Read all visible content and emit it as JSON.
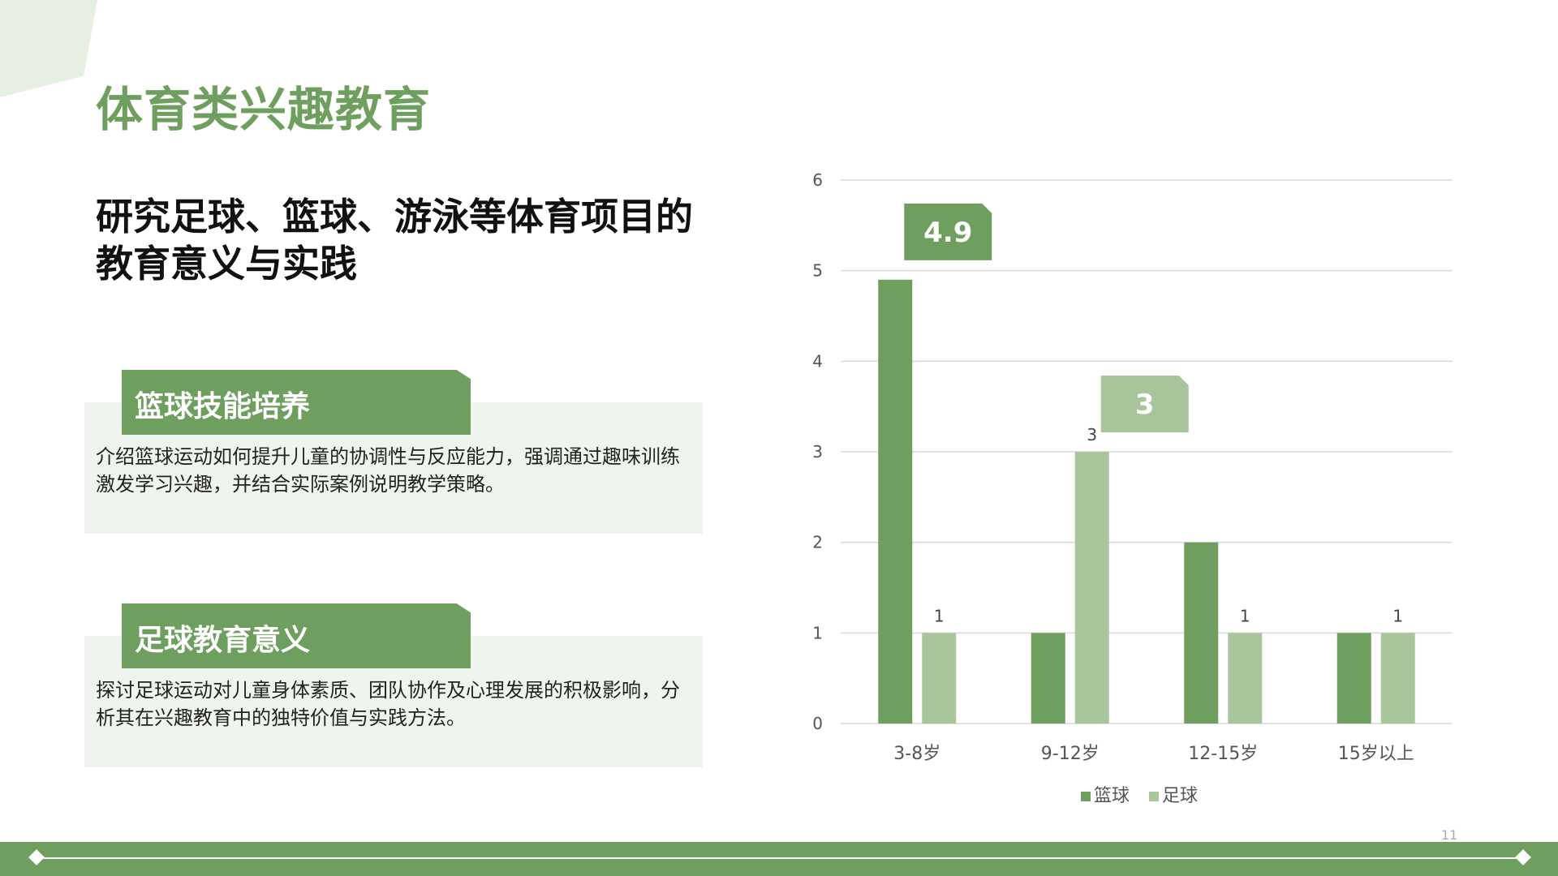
{
  "header": {
    "title": "体育类兴趣教育",
    "subtitle": "研究足球、篮球、游泳等体育项目的教育意义与实践"
  },
  "cards": [
    {
      "tag": "篮球技能培养",
      "text": "介绍篮球运动如何提升儿童的协调性与反应能力，强调通过趣味训练激发学习兴趣，并结合实际案例说明教学策略。"
    },
    {
      "tag": "足球教育意义",
      "text": "探讨足球运动对儿童身体素质、团队协作及心理发展的积极影响，分析其在兴趣教育中的独特价值与实践方法。"
    }
  ],
  "footer": {
    "page_number": "11"
  },
  "colors": {
    "accent": "#6f9f5e",
    "accent_light": "#a8c59c",
    "card_bg": "#f0f4ee"
  },
  "chart_data": {
    "type": "bar",
    "categories": [
      "3-8岁",
      "9-12岁",
      "12-15岁",
      "15岁以上"
    ],
    "series": [
      {
        "name": "篮球",
        "values": [
          4.9,
          1,
          2,
          1
        ],
        "color": "#6f9f5e"
      },
      {
        "name": "足球",
        "values": [
          1,
          3,
          1,
          1
        ],
        "color": "#a8c59c"
      }
    ],
    "data_labels": {
      "篮球": [
        null,
        null,
        null,
        null
      ],
      "足球": [
        "1",
        "3",
        "1",
        "1"
      ]
    },
    "callouts": [
      {
        "series": "篮球",
        "category": "3-8岁",
        "text": "4.9"
      },
      {
        "series": "足球",
        "category": "9-12岁",
        "text": "3"
      }
    ],
    "yticks": [
      0,
      1,
      2,
      3,
      4,
      5,
      6
    ],
    "ylim": [
      0,
      6
    ],
    "grid": true,
    "legend": "bottom"
  }
}
